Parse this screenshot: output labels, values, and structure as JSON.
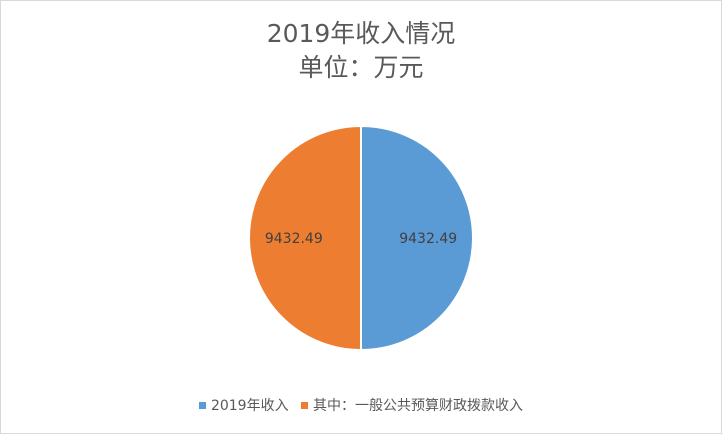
{
  "chart_data": {
    "type": "pie",
    "title": "2019年收入情况",
    "subtitle": "单位：万元",
    "categories": [
      "2019年收入",
      "其中：一般公共预算财政拨款收入"
    ],
    "values": [
      9432.49,
      9432.49
    ],
    "value_labels": [
      "9432.49",
      "9432.49"
    ],
    "colors": [
      "#5b9bd5",
      "#ed7d31"
    ],
    "legend_position": "bottom"
  }
}
